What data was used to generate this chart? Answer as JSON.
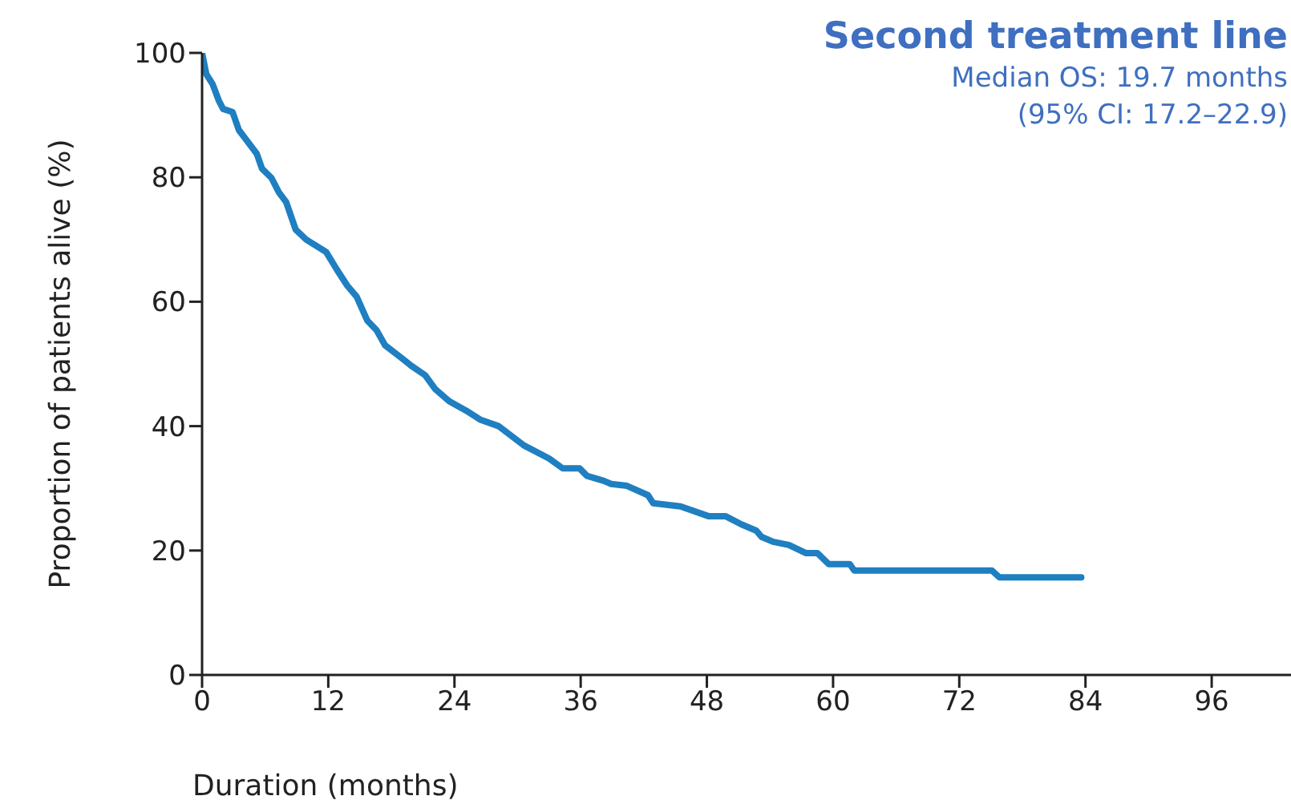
{
  "chart_data": {
    "type": "line",
    "title": "Second treatment line",
    "annotations": [
      "Median OS: 19.7 months",
      "(95% CI: 17.2–22.9)"
    ],
    "xlabel": "Duration (months)",
    "ylabel": "Proportion of patients alive (%)",
    "x": [
      0,
      0.4,
      1.0,
      1.6,
      2.0,
      2.9,
      3.5,
      4.3,
      5.2,
      5.7,
      6.6,
      7.3,
      8.0,
      8.9,
      9.9,
      11.8,
      12.8,
      13.8,
      14.7,
      15.7,
      16.6,
      17.4,
      18.7,
      19.9,
      21.2,
      22.2,
      23.5,
      25.1,
      26.5,
      28.2,
      30.6,
      33.0,
      34.3,
      35.9,
      36.6,
      38.2,
      38.9,
      40.4,
      42.4,
      42.9,
      45.5,
      48.2,
      49.8,
      51.3,
      52.7,
      53.2,
      54.3,
      55.8,
      57.4,
      58.5,
      59.6,
      61.6,
      62.0,
      75.1,
      75.8,
      83.6
    ],
    "series": [
      {
        "color": "#1f7fc1",
        "values": [
          100,
          96.6,
          95,
          92.3,
          91,
          90.5,
          87.6,
          85.8,
          83.8,
          81.4,
          79.9,
          77.6,
          76,
          71.6,
          70,
          68,
          65.2,
          62.6,
          60.8,
          57,
          55.4,
          53,
          51.3,
          49.7,
          48.2,
          45.9,
          44,
          42.5,
          41,
          40,
          36.9,
          34.8,
          33.2,
          33.2,
          32,
          31.2,
          30.7,
          30.4,
          28.9,
          27.6,
          27.1,
          25.5,
          25.5,
          24.2,
          23.2,
          22.2,
          21.4,
          20.9,
          19.6,
          19.6,
          17.8,
          17.8,
          16.8,
          16.8,
          15.7,
          15.7
        ]
      }
    ],
    "xlim": [
      0,
      104
    ],
    "ylim": [
      0,
      100
    ],
    "xticks": [
      0,
      12,
      24,
      36,
      48,
      60,
      72,
      84,
      96
    ],
    "yticks": [
      0,
      20,
      40,
      60,
      80,
      100
    ]
  }
}
